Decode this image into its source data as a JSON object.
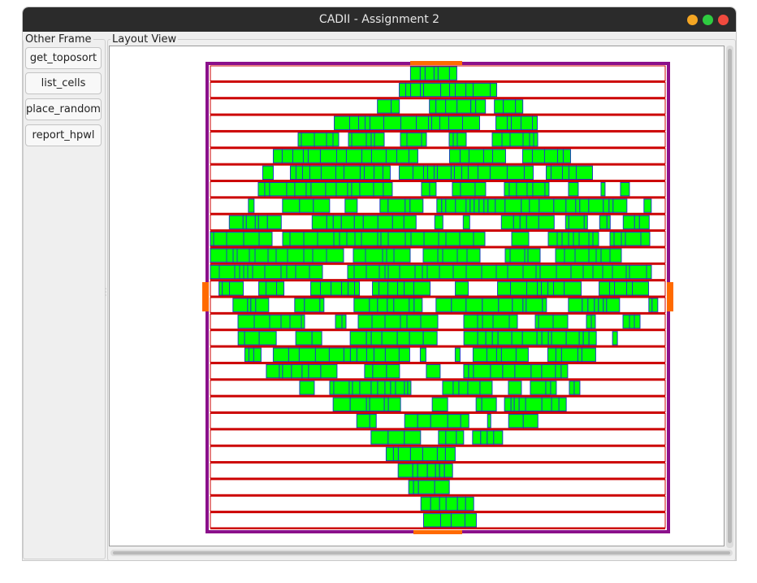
{
  "window": {
    "title": "CADII - Assignment 2"
  },
  "sidebar": {
    "frame_label": "Other Frame",
    "buttons": [
      {
        "label": "get_toposort"
      },
      {
        "label": "list_cells"
      },
      {
        "label": "place_random"
      },
      {
        "label": "report_hpwl"
      }
    ]
  },
  "layout_view": {
    "frame_label": "Layout View",
    "rows": 28,
    "colors": {
      "die": "#8b108b",
      "row_line": "#cc0000",
      "cell_fill": "#00ff00",
      "cell_stroke": "#1a3fbf",
      "io_pin": "#ff6a00"
    }
  },
  "colors": {
    "titlebar": "#2b2b2b",
    "close": "#f04a3e",
    "minimize": "#f5a623",
    "maximize": "#2ecc40"
  }
}
